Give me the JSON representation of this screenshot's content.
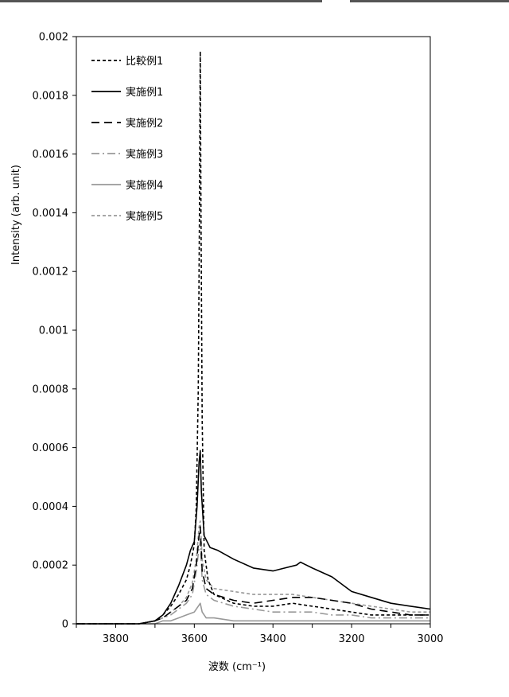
{
  "chart_data": {
    "type": "line",
    "xlabel": "波数 (cm⁻¹)",
    "ylabel": "Intensity (arb. unit)",
    "xlim": [
      3900,
      3000
    ],
    "x_reversed": true,
    "ylim": [
      0,
      0.002
    ],
    "x_ticks": [
      "3800",
      "3600",
      "3400",
      "3200",
      "3000"
    ],
    "y_ticks": [
      "0",
      "0.0002",
      "0.0004",
      "0.0006",
      "0.0008",
      "0.001",
      "0.0012",
      "0.0014",
      "0.0016",
      "0.0018",
      "0.002"
    ],
    "grid": false,
    "legend_position": "top-left",
    "series": [
      {
        "name": "比較例1",
        "color": "#000000",
        "dash": "short",
        "points": [
          [
            3900,
            0
          ],
          [
            3740,
            0
          ],
          [
            3700,
            1e-05
          ],
          [
            3680,
            3e-05
          ],
          [
            3660,
            6e-05
          ],
          [
            3640,
            0.0001
          ],
          [
            3620,
            0.00015
          ],
          [
            3610,
            0.0002
          ],
          [
            3600,
            0.00027
          ],
          [
            3595,
            0.0004
          ],
          [
            3590,
            0.0008
          ],
          [
            3587,
            0.0014
          ],
          [
            3585,
            0.00195
          ],
          [
            3583,
            0.0014
          ],
          [
            3580,
            0.0007
          ],
          [
            3575,
            0.00025
          ],
          [
            3565,
            0.00015
          ],
          [
            3550,
            0.0001
          ],
          [
            3500,
            7e-05
          ],
          [
            3450,
            6e-05
          ],
          [
            3400,
            6e-05
          ],
          [
            3350,
            7e-05
          ],
          [
            3300,
            6e-05
          ],
          [
            3250,
            5e-05
          ],
          [
            3200,
            4e-05
          ],
          [
            3150,
            3e-05
          ],
          [
            3100,
            3e-05
          ],
          [
            3050,
            3e-05
          ],
          [
            3000,
            3e-05
          ]
        ]
      },
      {
        "name": "実施例1",
        "color": "#000000",
        "dash": "solid",
        "points": [
          [
            3900,
            0
          ],
          [
            3740,
            0
          ],
          [
            3700,
            1e-05
          ],
          [
            3680,
            3e-05
          ],
          [
            3660,
            7e-05
          ],
          [
            3640,
            0.00013
          ],
          [
            3620,
            0.0002
          ],
          [
            3610,
            0.00025
          ],
          [
            3600,
            0.00028
          ],
          [
            3593,
            0.0004
          ],
          [
            3588,
            0.00055
          ],
          [
            3585,
            0.00059
          ],
          [
            3582,
            0.00045
          ],
          [
            3575,
            0.0003
          ],
          [
            3560,
            0.00026
          ],
          [
            3540,
            0.00025
          ],
          [
            3500,
            0.00022
          ],
          [
            3450,
            0.00019
          ],
          [
            3400,
            0.00018
          ],
          [
            3370,
            0.00019
          ],
          [
            3340,
            0.0002
          ],
          [
            3330,
            0.00021
          ],
          [
            3300,
            0.00019
          ],
          [
            3250,
            0.00016
          ],
          [
            3200,
            0.00011
          ],
          [
            3150,
            9e-05
          ],
          [
            3100,
            7e-05
          ],
          [
            3050,
            6e-05
          ],
          [
            3000,
            5e-05
          ]
        ]
      },
      {
        "name": "実施例2",
        "color": "#000000",
        "dash": "long",
        "points": [
          [
            3900,
            0
          ],
          [
            3740,
            0
          ],
          [
            3700,
            1e-05
          ],
          [
            3680,
            2e-05
          ],
          [
            3660,
            4e-05
          ],
          [
            3640,
            6e-05
          ],
          [
            3620,
            8e-05
          ],
          [
            3605,
            0.00012
          ],
          [
            3595,
            0.0002
          ],
          [
            3588,
            0.0003
          ],
          [
            3585,
            0.00033
          ],
          [
            3580,
            0.00018
          ],
          [
            3570,
            0.00012
          ],
          [
            3550,
            0.0001
          ],
          [
            3500,
            8e-05
          ],
          [
            3450,
            7e-05
          ],
          [
            3400,
            8e-05
          ],
          [
            3350,
            9e-05
          ],
          [
            3300,
            9e-05
          ],
          [
            3250,
            8e-05
          ],
          [
            3200,
            7e-05
          ],
          [
            3150,
            5e-05
          ],
          [
            3100,
            4e-05
          ],
          [
            3050,
            3e-05
          ],
          [
            3000,
            3e-05
          ]
        ]
      },
      {
        "name": "実施例3",
        "color": "#999999",
        "dash": "dashdot",
        "points": [
          [
            3900,
            0
          ],
          [
            3740,
            0
          ],
          [
            3700,
            1e-05
          ],
          [
            3680,
            2e-05
          ],
          [
            3660,
            3e-05
          ],
          [
            3640,
            5e-05
          ],
          [
            3620,
            7e-05
          ],
          [
            3605,
            0.0001
          ],
          [
            3595,
            0.00018
          ],
          [
            3588,
            0.00026
          ],
          [
            3585,
            0.00028
          ],
          [
            3580,
            0.00015
          ],
          [
            3570,
            0.0001
          ],
          [
            3550,
            8e-05
          ],
          [
            3500,
            6e-05
          ],
          [
            3450,
            5e-05
          ],
          [
            3400,
            4e-05
          ],
          [
            3350,
            4e-05
          ],
          [
            3300,
            4e-05
          ],
          [
            3250,
            3e-05
          ],
          [
            3200,
            3e-05
          ],
          [
            3150,
            2e-05
          ],
          [
            3100,
            2e-05
          ],
          [
            3050,
            2e-05
          ],
          [
            3000,
            2e-05
          ]
        ]
      },
      {
        "name": "実施例4",
        "color": "#999999",
        "dash": "solid",
        "points": [
          [
            3900,
            0
          ],
          [
            3740,
            0
          ],
          [
            3700,
            0
          ],
          [
            3680,
            1e-05
          ],
          [
            3660,
            1e-05
          ],
          [
            3640,
            2e-05
          ],
          [
            3620,
            3e-05
          ],
          [
            3600,
            4e-05
          ],
          [
            3590,
            6e-05
          ],
          [
            3585,
            7e-05
          ],
          [
            3580,
            4e-05
          ],
          [
            3570,
            2e-05
          ],
          [
            3550,
            2e-05
          ],
          [
            3500,
            1e-05
          ],
          [
            3450,
            1e-05
          ],
          [
            3400,
            1e-05
          ],
          [
            3350,
            1e-05
          ],
          [
            3300,
            1e-05
          ],
          [
            3250,
            1e-05
          ],
          [
            3200,
            1e-05
          ],
          [
            3150,
            1e-05
          ],
          [
            3100,
            1e-05
          ],
          [
            3050,
            1e-05
          ],
          [
            3000,
            1e-05
          ]
        ]
      },
      {
        "name": "実施例5",
        "color": "#999999",
        "dash": "short",
        "points": [
          [
            3900,
            0
          ],
          [
            3740,
            0
          ],
          [
            3700,
            1e-05
          ],
          [
            3680,
            2e-05
          ],
          [
            3660,
            4e-05
          ],
          [
            3640,
            6e-05
          ],
          [
            3620,
            9e-05
          ],
          [
            3605,
            0.00014
          ],
          [
            3595,
            0.00022
          ],
          [
            3588,
            0.00033
          ],
          [
            3585,
            0.00035
          ],
          [
            3580,
            0.00022
          ],
          [
            3570,
            0.00015
          ],
          [
            3550,
            0.00012
          ],
          [
            3500,
            0.00011
          ],
          [
            3450,
            0.0001
          ],
          [
            3400,
            0.0001
          ],
          [
            3350,
            0.0001
          ],
          [
            3300,
            9e-05
          ],
          [
            3250,
            8e-05
          ],
          [
            3200,
            7e-05
          ],
          [
            3150,
            6e-05
          ],
          [
            3100,
            5e-05
          ],
          [
            3050,
            4e-05
          ],
          [
            3000,
            4e-05
          ]
        ]
      }
    ]
  }
}
